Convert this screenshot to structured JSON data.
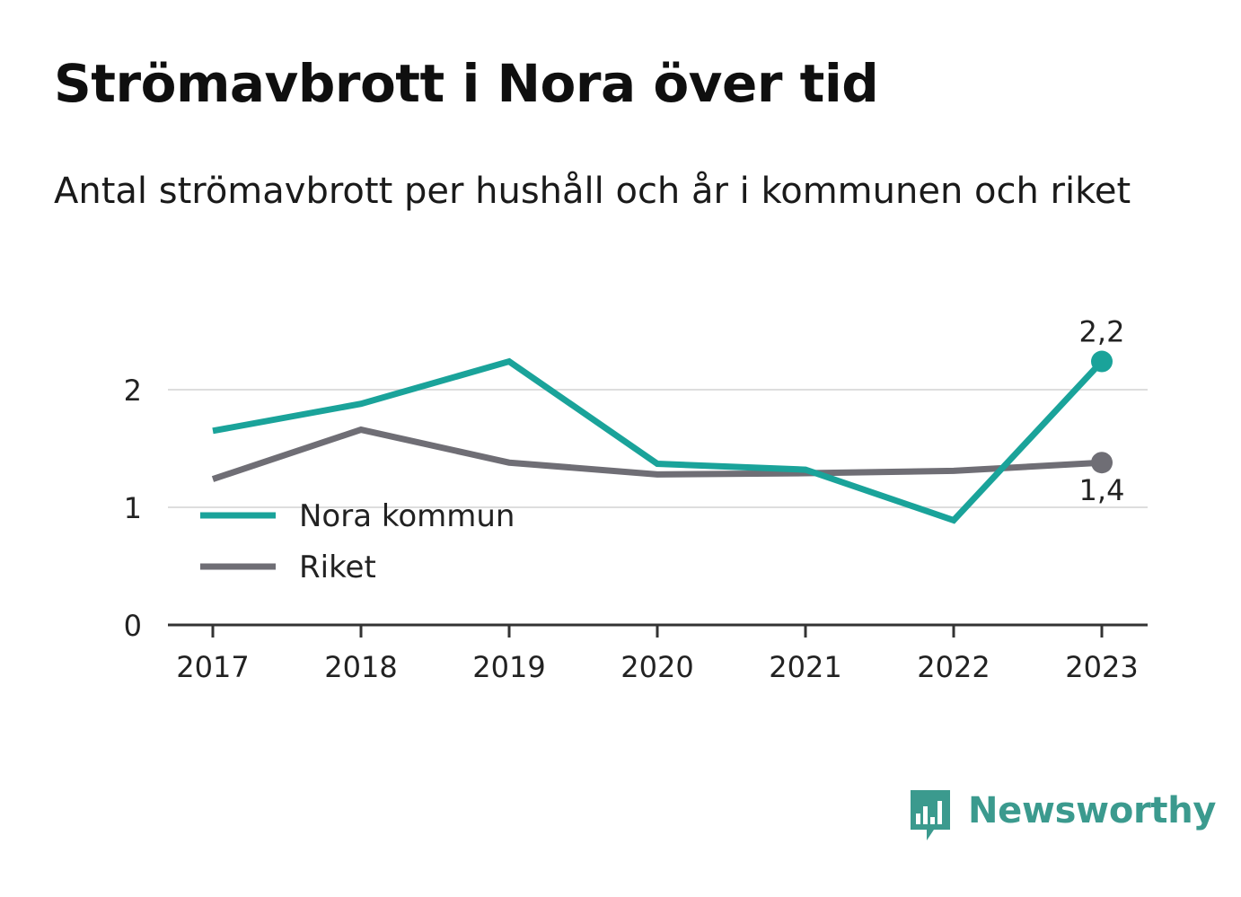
{
  "title": "Strömavbrott i Nora över tid",
  "subtitle": "Antal strömavbrott per hushåll och år i kommunen och riket",
  "brand": {
    "name": "Newsworthy",
    "color": "#3b9a8e"
  },
  "colors": {
    "nora": "#1aa39a",
    "riket": "#6f6e75",
    "grid": "#dddddd",
    "axis": "#333333",
    "text": "#222222"
  },
  "chart_data": {
    "type": "line",
    "title": "Strömavbrott i Nora över tid",
    "subtitle": "Antal strömavbrott per hushåll och år i kommunen och riket",
    "xlabel": "",
    "ylabel": "",
    "x": [
      "2017",
      "2018",
      "2019",
      "2020",
      "2021",
      "2022",
      "2023"
    ],
    "ylim": [
      0,
      2.5
    ],
    "yticks": [
      0,
      1,
      2
    ],
    "grid": true,
    "legend_position": "bottom-left",
    "series": [
      {
        "name": "Nora kommun",
        "color": "#1aa39a",
        "values": [
          1.65,
          1.88,
          2.24,
          1.37,
          1.32,
          0.89,
          2.24
        ],
        "end_label": "2,2"
      },
      {
        "name": "Riket",
        "color": "#6f6e75",
        "values": [
          1.24,
          1.66,
          1.38,
          1.28,
          1.29,
          1.31,
          1.38
        ],
        "end_label": "1,4"
      }
    ]
  }
}
